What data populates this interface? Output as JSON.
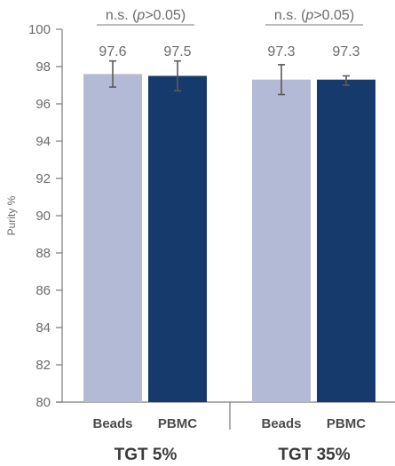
{
  "chart_data": {
    "type": "bar",
    "ylabel": "Purity %",
    "ylim": [
      80,
      100
    ],
    "yticks": [
      80,
      82,
      84,
      86,
      88,
      90,
      92,
      94,
      96,
      98,
      100
    ],
    "grid": false,
    "groups": [
      {
        "name": "TGT 5%",
        "significance": {
          "prefix": "n.s.  (",
          "p": "p",
          "suffix": ">0.05)"
        },
        "bars": [
          {
            "category": "Beads",
            "value": 97.6,
            "label": "97.6",
            "err_low": 96.9,
            "err_high": 98.3,
            "color": "#b3bad6"
          },
          {
            "category": "PBMC",
            "value": 97.5,
            "label": "97.5",
            "err_low": 96.7,
            "err_high": 98.3,
            "color": "#163a6b"
          }
        ]
      },
      {
        "name": "TGT 35%",
        "significance": {
          "prefix": "n.s.  (",
          "p": "p",
          "suffix": ">0.05)"
        },
        "bars": [
          {
            "category": "Beads",
            "value": 97.3,
            "label": "97.3",
            "err_low": 96.5,
            "err_high": 98.1,
            "color": "#b3bad6"
          },
          {
            "category": "PBMC",
            "value": 97.3,
            "label": "97.3",
            "err_low": 97.0,
            "err_high": 97.5,
            "color": "#163a6b"
          }
        ]
      }
    ]
  }
}
